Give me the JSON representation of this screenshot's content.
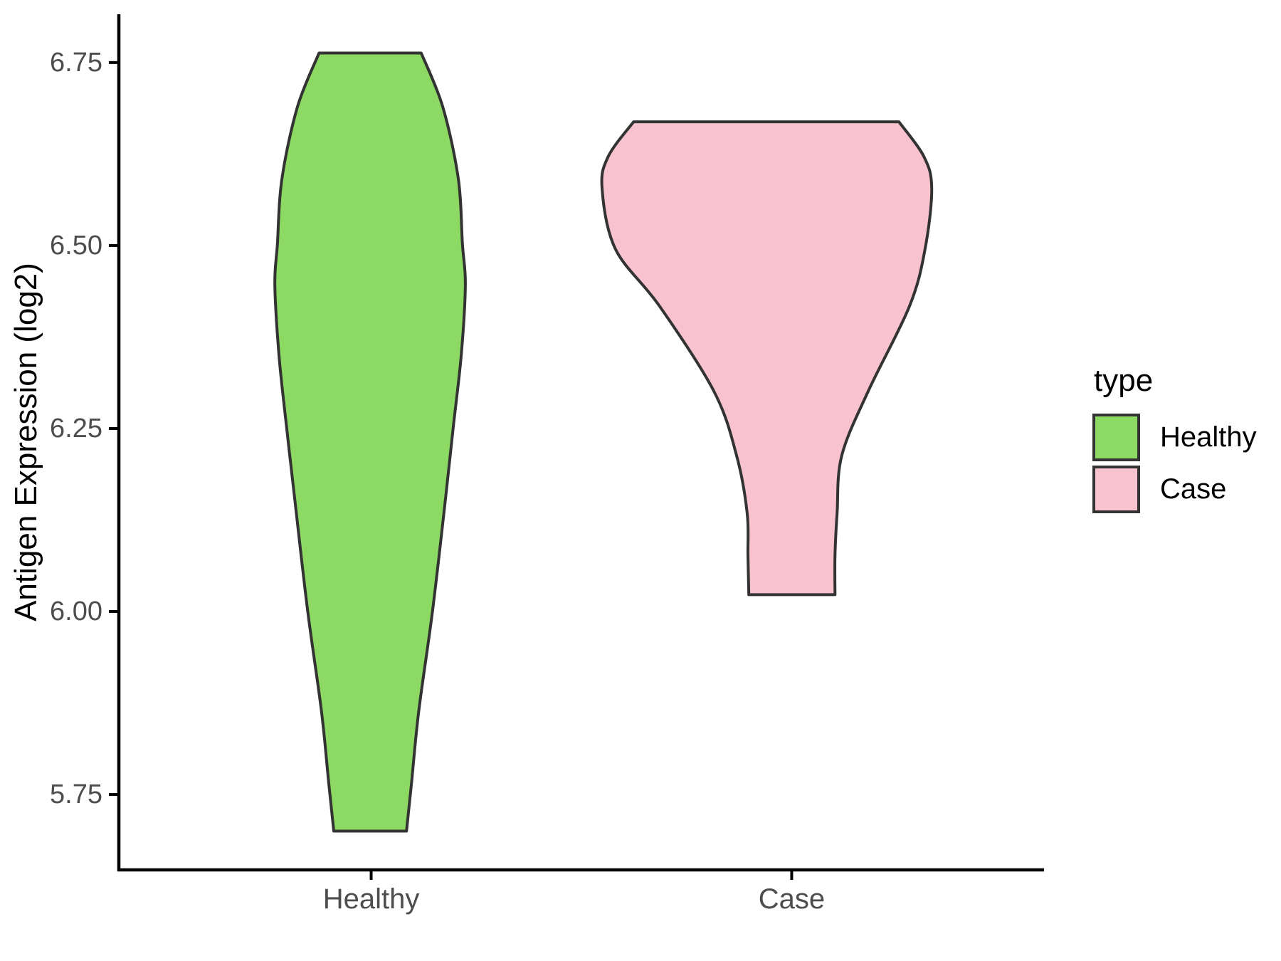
{
  "figure": {
    "background": "#ffffff"
  },
  "y_axis": {
    "title": "Antigen Expression (log2)"
  },
  "legend": {
    "title": "type",
    "position": "right",
    "items": [
      {
        "label": "Healthy",
        "color": "#8CD963"
      },
      {
        "label": "Case",
        "color": "#F8C3CE"
      }
    ]
  },
  "chart_data": {
    "type": "violin",
    "title": "",
    "xlabel": "",
    "ylabel": "Antigen Expression (log2)",
    "legend_position": "right",
    "grid": false,
    "x_range": [
      0.4,
      2.6
    ],
    "y_range": [
      5.647,
      6.816
    ],
    "y_ticks": [
      6.75,
      6.5,
      6.25,
      6.0,
      5.75
    ],
    "y_tick_labels": [
      "6.75",
      "6.50",
      "6.25",
      "6.00",
      "5.75"
    ],
    "categories": [
      {
        "label": "Healthy",
        "x": 1
      },
      {
        "label": "Case",
        "x": 2
      }
    ],
    "axis_color": "#000000",
    "tick_label_color": "#4d4d4d",
    "stroke": "#333333",
    "stroke_width": 4,
    "series": [
      {
        "name": "Healthy",
        "x_center": 1,
        "fill": "#8CD963",
        "min": 5.7,
        "max": 6.76,
        "outline": [
          {
            "v": 6.763,
            "xl": 0.876,
            "xr": 1.119
          },
          {
            "v": 6.69,
            "xl": 0.825,
            "xr": 1.17
          },
          {
            "v": 6.592,
            "xl": 0.788,
            "xr": 1.207
          },
          {
            "v": 6.502,
            "xl": 0.777,
            "xr": 1.217
          },
          {
            "v": 6.446,
            "xl": 0.771,
            "xr": 1.224
          },
          {
            "v": 6.349,
            "xl": 0.781,
            "xr": 1.214
          },
          {
            "v": 6.251,
            "xl": 0.799,
            "xr": 1.195
          },
          {
            "v": 6.155,
            "xl": 0.818,
            "xr": 1.177
          },
          {
            "v": 6.001,
            "xl": 0.849,
            "xr": 1.146
          },
          {
            "v": 5.863,
            "xl": 0.882,
            "xr": 1.113
          },
          {
            "v": 5.766,
            "xl": 0.899,
            "xr": 1.096
          },
          {
            "v": 5.7,
            "xl": 0.911,
            "xr": 1.084
          }
        ]
      },
      {
        "name": "Case",
        "x_center": 2,
        "fill": "#F8C3CE",
        "min": 6.02,
        "max": 6.67,
        "outline": [
          {
            "v": 6.669,
            "xl": 1.624,
            "xr": 2.255
          },
          {
            "v": 6.622,
            "xl": 1.564,
            "xr": 2.314
          },
          {
            "v": 6.578,
            "xl": 1.549,
            "xr": 2.333
          },
          {
            "v": 6.495,
            "xl": 1.581,
            "xr": 2.317
          },
          {
            "v": 6.417,
            "xl": 1.686,
            "xr": 2.28
          },
          {
            "v": 6.301,
            "xl": 1.815,
            "xr": 2.182
          },
          {
            "v": 6.213,
            "xl": 1.869,
            "xr": 2.119
          },
          {
            "v": 6.135,
            "xl": 1.894,
            "xr": 2.108
          },
          {
            "v": 6.077,
            "xl": 1.896,
            "xr": 2.103
          },
          {
            "v": 6.023,
            "xl": 1.898,
            "xr": 2.103
          }
        ]
      }
    ]
  }
}
